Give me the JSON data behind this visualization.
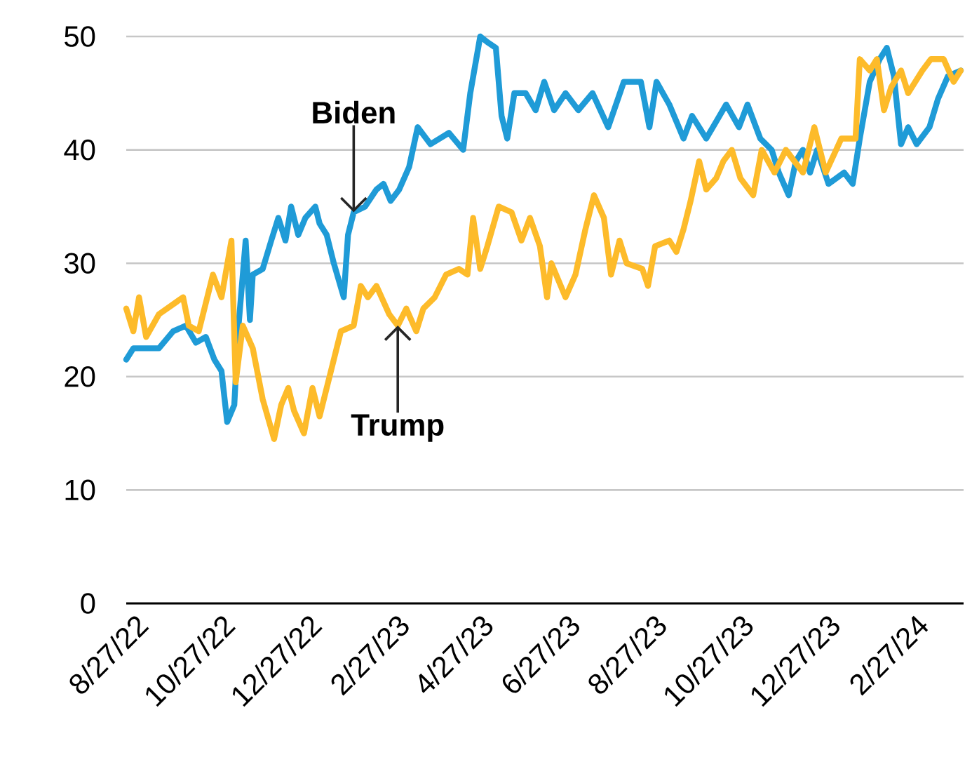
{
  "chart_data": {
    "type": "line",
    "xlim": [
      "2022-08-25",
      "2024-04-05"
    ],
    "xticks": [
      {
        "value": "2022-08-27",
        "label": "8/27/22"
      },
      {
        "value": "2022-10-27",
        "label": "10/27/22"
      },
      {
        "value": "2022-12-27",
        "label": "12/27/22"
      },
      {
        "value": "2023-02-27",
        "label": "2/27/23"
      },
      {
        "value": "2023-04-27",
        "label": "4/27/23"
      },
      {
        "value": "2023-06-27",
        "label": "6/27/23"
      },
      {
        "value": "2023-08-27",
        "label": "8/27/23"
      },
      {
        "value": "2023-10-27",
        "label": "10/27/23"
      },
      {
        "value": "2023-12-27",
        "label": "12/27/23"
      },
      {
        "value": "2024-02-27",
        "label": "2/27/24"
      }
    ],
    "ylim": [
      0,
      50
    ],
    "yticks": [
      0,
      10,
      20,
      30,
      40,
      50
    ],
    "grid": "y",
    "series": [
      {
        "color": "#1f9bd7",
        "x": [
          "2022-08-25",
          "2022-08-30",
          "2022-09-17",
          "2022-09-27",
          "2022-10-06",
          "2022-10-13",
          "2022-10-20",
          "2022-10-26",
          "2022-10-31",
          "2022-11-04",
          "2022-11-09",
          "2022-11-12",
          "2022-11-17",
          "2022-11-20",
          "2022-11-22",
          "2022-11-29",
          "2022-12-05",
          "2022-12-10",
          "2022-12-15",
          "2022-12-19",
          "2022-12-24",
          "2022-12-29",
          "2023-01-05",
          "2023-01-08",
          "2023-01-13",
          "2023-01-18",
          "2023-01-25",
          "2023-01-28",
          "2023-02-01",
          "2023-02-09",
          "2023-02-17",
          "2023-02-22",
          "2023-02-27",
          "2023-03-05",
          "2023-03-12",
          "2023-03-18",
          "2023-03-27",
          "2023-04-09",
          "2023-04-19",
          "2023-04-24",
          "2023-05-01",
          "2023-05-06",
          "2023-05-12",
          "2023-05-16",
          "2023-05-20",
          "2023-05-25",
          "2023-06-02",
          "2023-06-09",
          "2023-06-15",
          "2023-06-22",
          "2023-06-30",
          "2023-07-09",
          "2023-07-19",
          "2023-07-30",
          "2023-08-10",
          "2023-08-22",
          "2023-08-28",
          "2023-09-02",
          "2023-09-11",
          "2023-09-21",
          "2023-09-27",
          "2023-10-07",
          "2023-10-21",
          "2023-10-30",
          "2023-11-05",
          "2023-11-14",
          "2023-11-22",
          "2023-11-27",
          "2023-12-04",
          "2023-12-09",
          "2023-12-14",
          "2023-12-19",
          "2023-12-24",
          "2024-01-01",
          "2024-01-12",
          "2024-01-18",
          "2024-01-23",
          "2024-01-30",
          "2024-02-06",
          "2024-02-11",
          "2024-02-16",
          "2024-02-21",
          "2024-02-26",
          "2024-03-03",
          "2024-03-12",
          "2024-03-18",
          "2024-03-25",
          "2024-04-03"
        ],
        "values": [
          21.5,
          22.5,
          22.5,
          24,
          24.5,
          23,
          23.5,
          21.5,
          20.5,
          16,
          17.5,
          24.5,
          32,
          25,
          29,
          29.5,
          32,
          34,
          32,
          35,
          32.5,
          34,
          35,
          33.5,
          32.5,
          30,
          27,
          32.5,
          34.5,
          35,
          36.5,
          37,
          35.5,
          36.5,
          38.5,
          42,
          40.5,
          41.5,
          40,
          45,
          50,
          49.5,
          49,
          43,
          41,
          45,
          45,
          43.5,
          46,
          43.5,
          45,
          43.5,
          45,
          42,
          46,
          46,
          42,
          46,
          44,
          41,
          43,
          41,
          44,
          42,
          44,
          41,
          40,
          38,
          36,
          39,
          40,
          38,
          40,
          37,
          38,
          37,
          41,
          46,
          48,
          49,
          46.5,
          40.5,
          42,
          40.5,
          42,
          44.5,
          46.5,
          47
        ]
      },
      {
        "color": "#fdbb2a",
        "x": [
          "2022-08-25",
          "2022-08-30",
          "2022-09-03",
          "2022-09-08",
          "2022-09-17",
          "2022-10-04",
          "2022-10-08",
          "2022-10-15",
          "2022-10-25",
          "2022-10-31",
          "2022-11-07",
          "2022-11-10",
          "2022-11-15",
          "2022-11-22",
          "2022-11-29",
          "2022-12-07",
          "2022-12-12",
          "2022-12-17",
          "2022-12-21",
          "2022-12-28",
          "2023-01-03",
          "2023-01-08",
          "2023-01-15",
          "2023-01-23",
          "2023-02-01",
          "2023-02-06",
          "2023-02-11",
          "2023-02-17",
          "2023-02-26",
          "2023-03-04",
          "2023-03-10",
          "2023-03-17",
          "2023-03-22",
          "2023-03-30",
          "2023-04-07",
          "2023-04-16",
          "2023-04-22",
          "2023-04-26",
          "2023-05-01",
          "2023-05-06",
          "2023-05-14",
          "2023-05-23",
          "2023-05-30",
          "2023-06-05",
          "2023-06-12",
          "2023-06-17",
          "2023-06-20",
          "2023-06-30",
          "2023-07-07",
          "2023-07-14",
          "2023-07-20",
          "2023-07-27",
          "2023-08-01",
          "2023-08-07",
          "2023-08-12",
          "2023-08-23",
          "2023-08-27",
          "2023-09-01",
          "2023-09-11",
          "2023-09-16",
          "2023-09-21",
          "2023-09-26",
          "2023-10-02",
          "2023-10-07",
          "2023-10-14",
          "2023-10-19",
          "2023-10-25",
          "2023-10-31",
          "2023-11-09",
          "2023-11-15",
          "2023-11-24",
          "2023-12-02",
          "2023-12-14",
          "2023-12-22",
          "2023-12-30",
          "2024-01-10",
          "2024-01-20",
          "2024-01-23",
          "2024-01-30",
          "2024-02-04",
          "2024-02-09",
          "2024-02-14",
          "2024-02-21",
          "2024-02-26",
          "2024-03-07",
          "2024-03-13",
          "2024-03-22",
          "2024-03-29",
          "2024-04-03"
        ],
        "values": [
          26,
          24,
          27,
          23.5,
          25.5,
          27,
          24.5,
          24,
          29,
          27,
          32,
          19.5,
          24.5,
          22.5,
          18,
          14.5,
          17.5,
          19,
          17,
          15,
          19,
          16.5,
          20,
          24,
          24.5,
          28,
          27,
          28,
          25.5,
          24.5,
          26,
          24,
          26,
          27,
          29,
          29.5,
          29,
          34,
          29.5,
          31.5,
          35,
          34.5,
          32,
          34,
          31.5,
          27,
          30,
          27,
          29,
          33,
          36,
          34,
          29,
          32,
          30,
          29.5,
          28,
          31.5,
          32,
          31,
          33,
          35.5,
          39,
          36.5,
          37.5,
          39,
          40,
          37.5,
          36,
          40,
          38,
          40,
          38,
          42,
          38,
          41,
          41,
          48,
          47,
          48,
          43.5,
          45.5,
          47,
          45,
          47,
          48,
          48,
          46,
          47
        ]
      }
    ],
    "annotations": [
      {
        "text": "Biden",
        "x": "2023-02-01",
        "y": 34.5
      },
      {
        "text": "Trump",
        "x": "2023-03-04",
        "y": 24.5
      }
    ]
  }
}
